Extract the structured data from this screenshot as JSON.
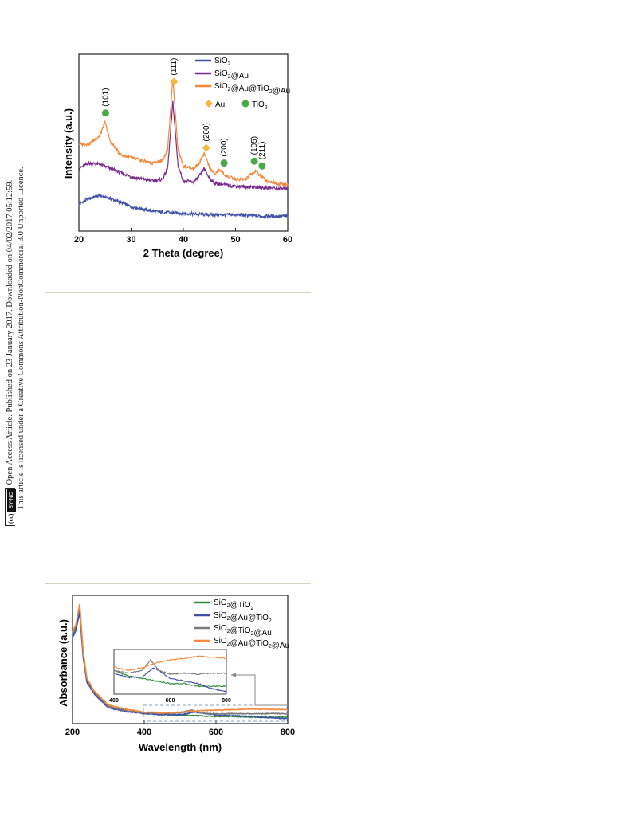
{
  "sidebar": {
    "line1": "Open Access Article. Published on 23 January 2017. Downloaded on 04/02/2017 05:12:59.",
    "line2": "This article is licensed under a Creative Commons Attribution-NonCommercial 3.0 Unported Licence.",
    "badge_cc": "(cc)",
    "badge_by": "BY-NC"
  },
  "colors": {
    "blue": "#3f4fa8",
    "purple": "#7a2a8e",
    "orange": "#f5883a",
    "green": "#4aa84a",
    "gray": "#7a7a7a",
    "gold": "#f4b942"
  },
  "chart_data": [
    {
      "type": "line",
      "xlabel": "2 Theta (degree)",
      "ylabel": "Intensity (a.u.)",
      "xlim": [
        20,
        60
      ],
      "xticks": [
        "20",
        "30",
        "40",
        "50",
        "60"
      ],
      "legend_position": "top-right",
      "series": [
        {
          "name": "SiO2",
          "label_main": "SiO",
          "label_sub": "2",
          "label_rest": "",
          "color": "#3f4fa8",
          "x": [
            20,
            22,
            24,
            26,
            28,
            30,
            35,
            40,
            45,
            50,
            55,
            60
          ],
          "y": [
            0.2,
            0.24,
            0.26,
            0.24,
            0.21,
            0.18,
            0.14,
            0.13,
            0.12,
            0.12,
            0.11,
            0.11
          ]
        },
        {
          "name": "SiO2@Au",
          "label_main": "SiO",
          "label_sub": "2",
          "label_rest": "@Au",
          "color": "#7a2a8e",
          "x": [
            20,
            22,
            24,
            26,
            28,
            30,
            34,
            36,
            37,
            38,
            39,
            40,
            42,
            43,
            44,
            45,
            46,
            48,
            50,
            55,
            60
          ],
          "y": [
            0.46,
            0.5,
            0.49,
            0.46,
            0.43,
            0.4,
            0.37,
            0.38,
            0.46,
            0.95,
            0.48,
            0.37,
            0.36,
            0.4,
            0.46,
            0.39,
            0.35,
            0.34,
            0.33,
            0.32,
            0.31
          ]
        },
        {
          "name": "SiO2@Au@TiO2@Au",
          "label_main": "SiO",
          "label_sub": "2",
          "label_rest": "@Au@TiO",
          "label_sub2": "2",
          "label_rest2": "@Au",
          "color": "#f5883a",
          "x": [
            20,
            22,
            24,
            25,
            26,
            28,
            30,
            34,
            36,
            37,
            38,
            39,
            40,
            42,
            43,
            44,
            45,
            46,
            47,
            48,
            50,
            52,
            53,
            54,
            55,
            56,
            58,
            60
          ],
          "y": [
            0.64,
            0.64,
            0.7,
            0.8,
            0.66,
            0.56,
            0.54,
            0.5,
            0.52,
            0.6,
            1.12,
            0.6,
            0.48,
            0.46,
            0.5,
            0.57,
            0.47,
            0.42,
            0.45,
            0.41,
            0.38,
            0.38,
            0.42,
            0.44,
            0.4,
            0.37,
            0.35,
            0.34
          ]
        }
      ],
      "peak_labels": [
        {
          "text": "(101)",
          "x": 25.1,
          "marker": "TiO2"
        },
        {
          "text": "(111)",
          "x": 38.2,
          "marker": "Au"
        },
        {
          "text": "(200)",
          "x": 44.4,
          "marker": "Au"
        },
        {
          "text": "(200)",
          "x": 47.8,
          "marker": "TiO2"
        },
        {
          "text": "(105)",
          "x": 53.6,
          "marker": "TiO2"
        },
        {
          "text": "(211)",
          "x": 55.1,
          "marker": "TiO2"
        }
      ],
      "marker_legend": [
        {
          "symbol": "diamond",
          "label": "Au",
          "sub": "",
          "color": "#f4b942"
        },
        {
          "symbol": "circle",
          "label": "TiO",
          "sub": "2",
          "color": "#4aa84a"
        }
      ]
    },
    {
      "type": "line",
      "xlabel": "Wavelength (nm)",
      "ylabel": "Absorbance (a.u.)",
      "xlim": [
        200,
        800
      ],
      "xticks": [
        "200",
        "400",
        "600",
        "800"
      ],
      "legend_position": "top-right",
      "series": [
        {
          "name": "SiO2@TiO2",
          "label_main": "SiO",
          "label_sub": "2",
          "label_rest": "@TiO",
          "label_sub2": "2",
          "label_rest2": "",
          "color": "#2e8b3e",
          "x": [
            200,
            210,
            220,
            230,
            240,
            260,
            300,
            350,
            400,
            450,
            500,
            550,
            600,
            650,
            700,
            750,
            800
          ],
          "y": [
            0.62,
            0.68,
            0.8,
            0.48,
            0.3,
            0.22,
            0.12,
            0.09,
            0.075,
            0.065,
            0.06,
            0.055,
            0.05,
            0.05,
            0.045,
            0.045,
            0.045
          ]
        },
        {
          "name": "SiO2@Au@TiO2",
          "label_main": "SiO",
          "label_sub": "2",
          "label_rest": "@Au@TiO",
          "label_sub2": "2",
          "label_rest2": "",
          "color": "#3f4fa8",
          "x": [
            200,
            210,
            220,
            230,
            240,
            260,
            300,
            350,
            400,
            450,
            500,
            540,
            560,
            600,
            650,
            700,
            750,
            800
          ],
          "y": [
            0.6,
            0.66,
            0.78,
            0.46,
            0.29,
            0.21,
            0.11,
            0.085,
            0.07,
            0.062,
            0.062,
            0.08,
            0.075,
            0.06,
            0.055,
            0.05,
            0.04,
            0.035
          ]
        },
        {
          "name": "SiO2@TiO2@Au",
          "label_main": "SiO",
          "label_sub": "2",
          "label_rest": "@TiO",
          "label_sub2": "2",
          "label_rest2": "@Au",
          "color": "#7a7a7a",
          "x": [
            200,
            210,
            220,
            230,
            240,
            260,
            300,
            350,
            400,
            450,
            500,
            530,
            560,
            600,
            650,
            700,
            750,
            800
          ],
          "y": [
            0.63,
            0.7,
            0.82,
            0.49,
            0.31,
            0.22,
            0.12,
            0.09,
            0.075,
            0.07,
            0.075,
            0.095,
            0.075,
            0.068,
            0.07,
            0.068,
            0.07,
            0.07
          ]
        },
        {
          "name": "SiO2@Au@TiO2@Au",
          "label_main": "SiO",
          "label_sub": "2",
          "label_rest": "@Au@TiO",
          "label_sub2": "2",
          "label_rest2": "@Au",
          "color": "#f5883a",
          "x": [
            200,
            210,
            220,
            230,
            240,
            260,
            300,
            350,
            400,
            450,
            500,
            550,
            600,
            650,
            700,
            750,
            800
          ],
          "y": [
            0.64,
            0.7,
            0.84,
            0.5,
            0.32,
            0.23,
            0.13,
            0.1,
            0.082,
            0.075,
            0.08,
            0.09,
            0.095,
            0.098,
            0.102,
            0.1,
            0.098
          ]
        }
      ],
      "inset": {
        "xlim": [
          400,
          800
        ],
        "xticks": [
          "400",
          "600",
          "800"
        ]
      }
    }
  ]
}
